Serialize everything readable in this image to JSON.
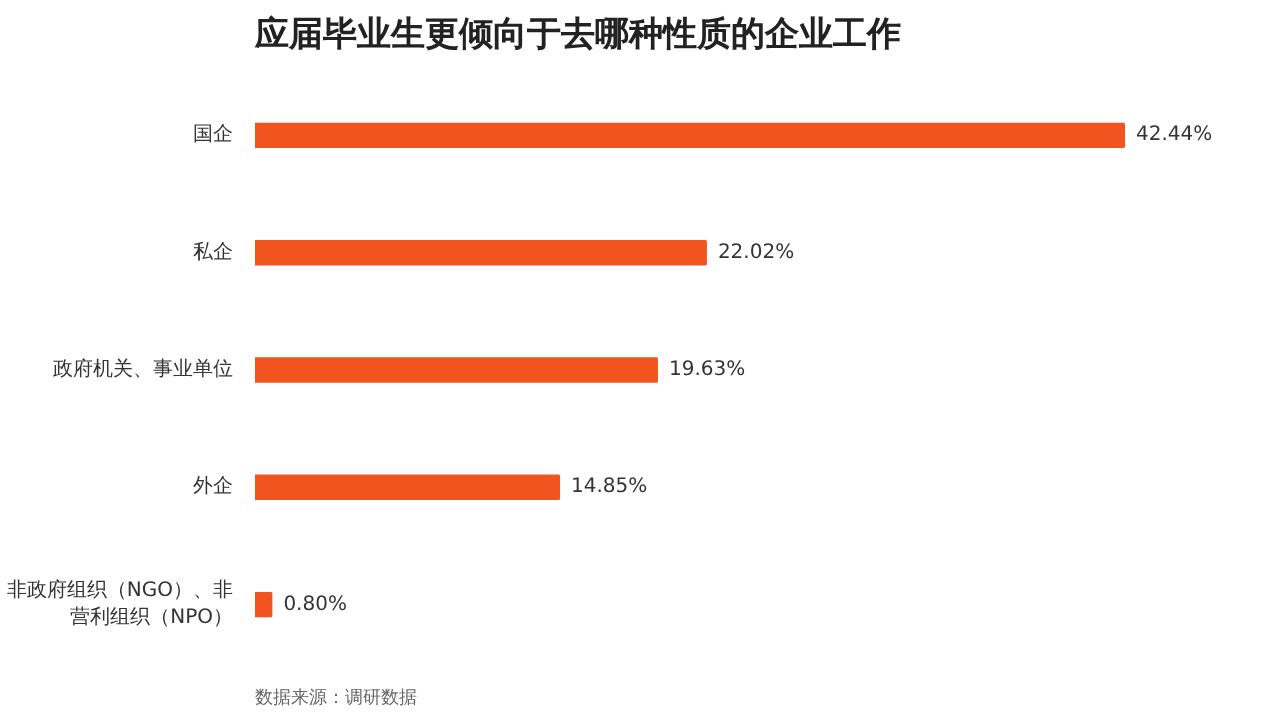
{
  "chart_data": {
    "type": "bar",
    "orientation": "horizontal",
    "title": "应届毕业生更倾向于去哪种性质的企业工作",
    "categories": [
      "国企",
      "私企",
      "政府机关、事业单位",
      "外企",
      "非政府组织（NGO）、非营利组织（NPO）"
    ],
    "values": [
      42.44,
      22.02,
      19.63,
      14.85,
      0.8
    ],
    "value_labels": [
      "42.44%",
      "22.02%",
      "19.63%",
      "14.85%",
      "0.80%"
    ],
    "color": "#f2541f",
    "grid": false,
    "annotations": [
      "数据来源：调研数据"
    ]
  }
}
